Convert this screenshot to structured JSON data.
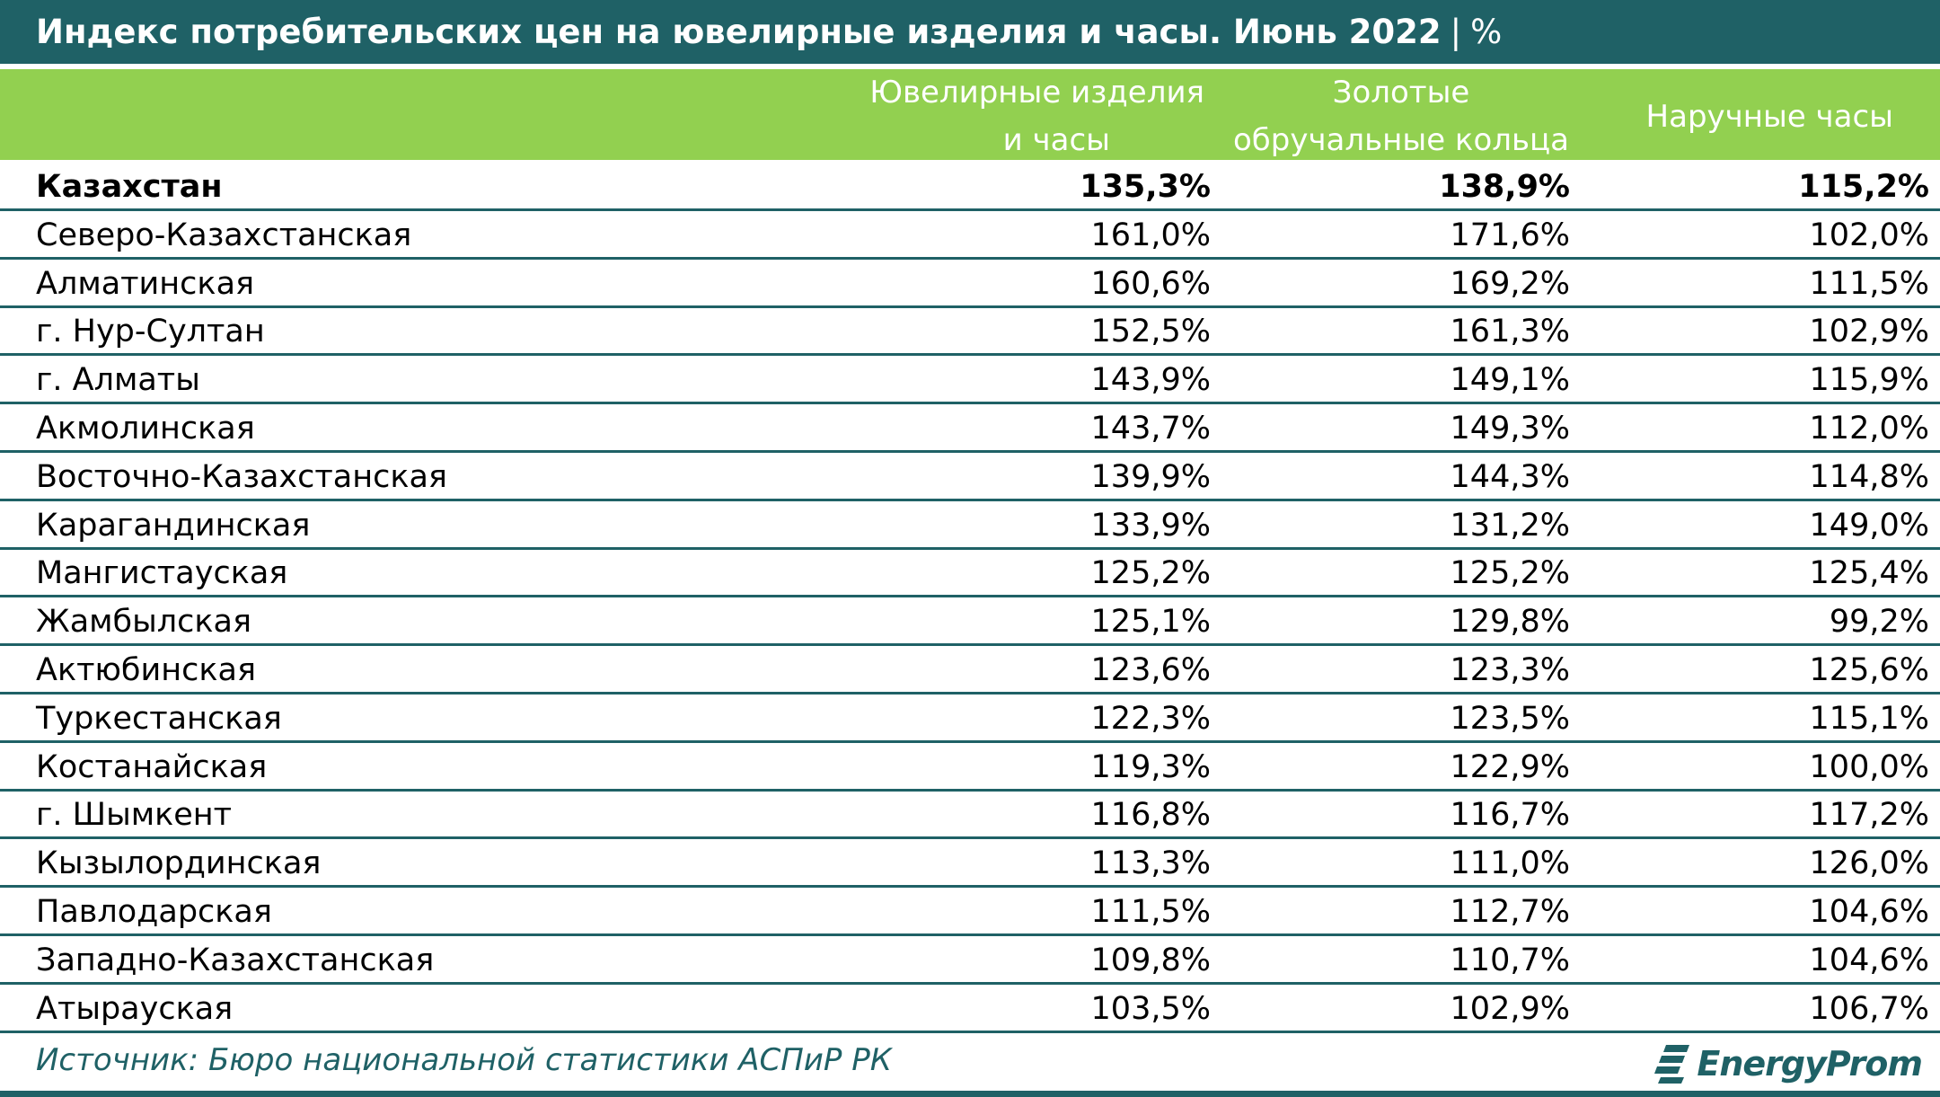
{
  "title": {
    "main": "Индекс потребительских цен на ювелирные изделия и часы. Июнь 2022",
    "separator": "|",
    "unit": "%"
  },
  "colors": {
    "title_bg": "#1f6166",
    "header_bg": "#92d050",
    "rule": "#1f6166",
    "source_text": "#1f6166"
  },
  "columns": {
    "col1": [
      "Ювелирные изделия",
      "и часы"
    ],
    "col2": [
      "Золотые",
      "обручальные кольца"
    ],
    "col3": "Наручные часы"
  },
  "chart_data": {
    "type": "table",
    "title": "Индекс потребительских цен на ювелирные изделия и часы. Июнь 2022",
    "unit": "%",
    "columns": [
      "Ювелирные изделия и часы",
      "Золотые обручальные кольца",
      "Наручные часы"
    ],
    "rows": [
      {
        "name": "Казахстан",
        "values": [
          "135,3%",
          "138,9%",
          "115,2%"
        ],
        "bold": true
      },
      {
        "name": "Северо-Казахстанская",
        "values": [
          "161,0%",
          "171,6%",
          "102,0%"
        ]
      },
      {
        "name": "Алматинская",
        "values": [
          "160,6%",
          "169,2%",
          "111,5%"
        ]
      },
      {
        "name": "г. Нур-Султан",
        "values": [
          "152,5%",
          "161,3%",
          "102,9%"
        ]
      },
      {
        "name": "г. Алматы",
        "values": [
          "143,9%",
          "149,1%",
          "115,9%"
        ]
      },
      {
        "name": "Акмолинская",
        "values": [
          "143,7%",
          "149,3%",
          "112,0%"
        ]
      },
      {
        "name": "Восточно-Казахстанская",
        "values": [
          "139,9%",
          "144,3%",
          "114,8%"
        ]
      },
      {
        "name": "Карагандинская",
        "values": [
          "133,9%",
          "131,2%",
          "149,0%"
        ]
      },
      {
        "name": "Мангистауская",
        "values": [
          "125,2%",
          "125,2%",
          "125,4%"
        ]
      },
      {
        "name": "Жамбылская",
        "values": [
          "125,1%",
          "129,8%",
          "99,2%"
        ]
      },
      {
        "name": "Актюбинская",
        "values": [
          "123,6%",
          "123,3%",
          "125,6%"
        ]
      },
      {
        "name": "Туркестанская",
        "values": [
          "122,3%",
          "123,5%",
          "115,1%"
        ]
      },
      {
        "name": "Костанайская",
        "values": [
          "119,3%",
          "122,9%",
          "100,0%"
        ]
      },
      {
        "name": "г. Шымкент",
        "values": [
          "116,8%",
          "116,7%",
          "117,2%"
        ]
      },
      {
        "name": "Кызылординская",
        "values": [
          "113,3%",
          "111,0%",
          "126,0%"
        ]
      },
      {
        "name": "Павлодарская",
        "values": [
          "111,5%",
          "112,7%",
          "104,6%"
        ]
      },
      {
        "name": "Западно-Казахстанская",
        "values": [
          "109,8%",
          "110,7%",
          "104,6%"
        ]
      },
      {
        "name": "Атырауская",
        "values": [
          "103,5%",
          "102,9%",
          "106,7%"
        ]
      }
    ]
  },
  "source": "Источник: Бюро национальной статистики АСПиР РК",
  "logo": {
    "text": "EnergyProm",
    "icon": "energyprom-logo-icon"
  }
}
